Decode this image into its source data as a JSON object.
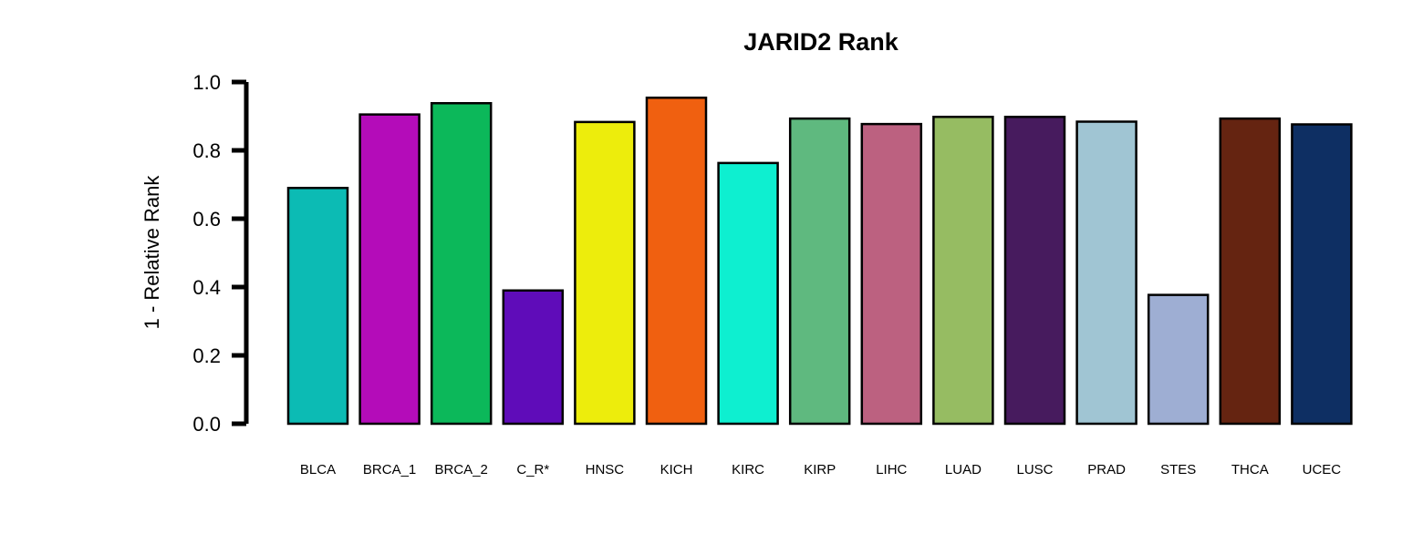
{
  "chart_data": {
    "type": "bar",
    "title": "JARID2 Rank",
    "xlabel": "",
    "ylabel": "1 - Relative Rank",
    "ylim": [
      0,
      1.0
    ],
    "yticks": [
      "0.0",
      "0.2",
      "0.4",
      "0.6",
      "0.8",
      "1.0"
    ],
    "grid": false,
    "legend": "none",
    "categories": [
      "BLCA",
      "BRCA_1",
      "BRCA_2",
      "C_R*",
      "HNSC",
      "KICH",
      "KIRC",
      "KIRP",
      "LIHC",
      "LUAD",
      "LUSC",
      "PRAD",
      "STES",
      "THCA",
      "UCEC"
    ],
    "values": [
      0.69,
      0.905,
      0.938,
      0.39,
      0.883,
      0.954,
      0.763,
      0.893,
      0.877,
      0.898,
      0.898,
      0.884,
      0.377,
      0.893,
      0.876
    ],
    "colors": [
      "#0CBBB4",
      "#B40CB9",
      "#0CB85A",
      "#5F0CB9",
      "#EDED0C",
      "#F06010",
      "#0EEFD0",
      "#5FB97F",
      "#BC6180",
      "#96BC62",
      "#471B5E",
      "#A0C5D3",
      "#9EAED3",
      "#652411",
      "#0E2F63"
    ]
  }
}
